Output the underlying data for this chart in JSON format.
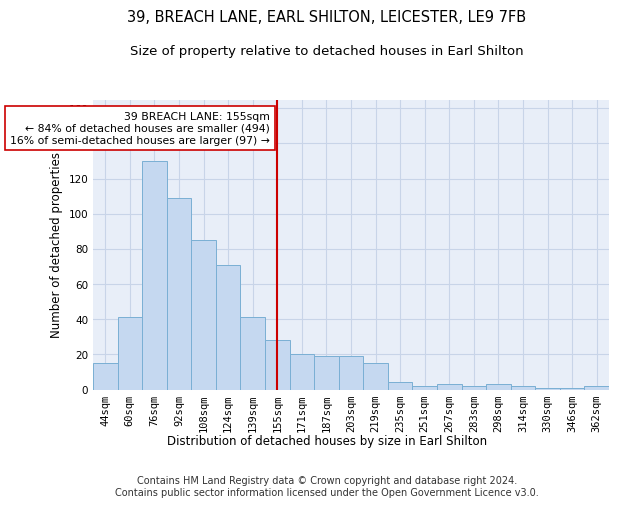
{
  "title": "39, BREACH LANE, EARL SHILTON, LEICESTER, LE9 7FB",
  "subtitle": "Size of property relative to detached houses in Earl Shilton",
  "xlabel": "Distribution of detached houses by size in Earl Shilton",
  "ylabel": "Number of detached properties",
  "categories": [
    "44sqm",
    "60sqm",
    "76sqm",
    "92sqm",
    "108sqm",
    "124sqm",
    "139sqm",
    "155sqm",
    "171sqm",
    "187sqm",
    "203sqm",
    "219sqm",
    "235sqm",
    "251sqm",
    "267sqm",
    "283sqm",
    "298sqm",
    "314sqm",
    "330sqm",
    "346sqm",
    "362sqm"
  ],
  "values": [
    15,
    41,
    130,
    109,
    85,
    71,
    41,
    28,
    20,
    19,
    19,
    15,
    4,
    2,
    3,
    2,
    3,
    2,
    1,
    1,
    2
  ],
  "bar_color": "#c5d8f0",
  "bar_edge_color": "#7aafd4",
  "bar_width": 1.0,
  "vline_x_index": 7,
  "vline_color": "#cc0000",
  "annotation_text": "  39 BREACH LANE: 155sqm\n← 84% of detached houses are smaller (494)\n16% of semi-detached houses are larger (97) →",
  "annotation_box_color": "#ffffff",
  "annotation_box_edge_color": "#cc0000",
  "ylim": [
    0,
    165
  ],
  "yticks": [
    0,
    20,
    40,
    60,
    80,
    100,
    120,
    140,
    160
  ],
  "grid_color": "#c8d4e8",
  "bg_color": "#e8eef8",
  "footer": "Contains HM Land Registry data © Crown copyright and database right 2024.\nContains public sector information licensed under the Open Government Licence v3.0.",
  "title_fontsize": 10.5,
  "subtitle_fontsize": 9.5,
  "xlabel_fontsize": 8.5,
  "ylabel_fontsize": 8.5,
  "tick_fontsize": 7.5,
  "footer_fontsize": 7.0,
  "annotation_fontsize": 7.8
}
